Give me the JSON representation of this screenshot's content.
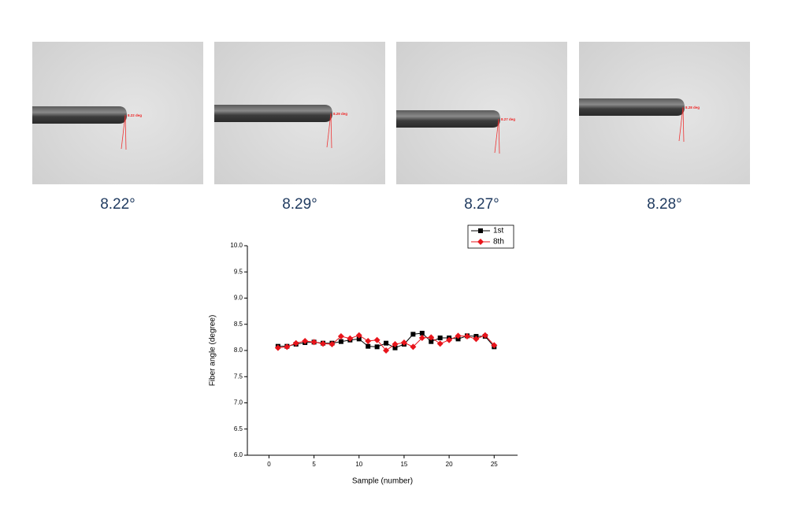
{
  "images": [
    {
      "overlay": "8.22 deg",
      "caption": "8.22°"
    },
    {
      "overlay": "8.29 deg",
      "caption": "8.29°"
    },
    {
      "overlay": "8.27 deg",
      "caption": "8.27°"
    },
    {
      "overlay": "8.28 deg",
      "caption": "8.28°"
    }
  ],
  "chart_data": {
    "type": "line",
    "x_label": "Sample (number)",
    "y_label": "Fiber angle (degree)",
    "x": [
      1,
      2,
      3,
      4,
      5,
      6,
      7,
      8,
      9,
      10,
      11,
      12,
      13,
      14,
      15,
      16,
      17,
      18,
      19,
      20,
      21,
      22,
      23,
      24,
      25
    ],
    "series": [
      {
        "name": "1st",
        "color": "#000000",
        "marker": "square",
        "values": [
          8.08,
          8.08,
          8.12,
          8.15,
          8.16,
          8.14,
          8.14,
          8.17,
          8.2,
          8.22,
          8.08,
          8.07,
          8.14,
          8.05,
          8.12,
          8.31,
          8.33,
          8.17,
          8.24,
          8.24,
          8.22,
          8.28,
          8.27,
          8.27,
          8.07
        ]
      },
      {
        "name": "8th",
        "color": "#e8141b",
        "marker": "diamond",
        "values": [
          8.05,
          8.07,
          8.14,
          8.18,
          8.16,
          8.13,
          8.12,
          8.27,
          8.23,
          8.29,
          8.18,
          8.2,
          8.0,
          8.12,
          8.15,
          8.07,
          8.24,
          8.25,
          8.13,
          8.2,
          8.28,
          8.27,
          8.22,
          8.29,
          8.1
        ]
      }
    ],
    "xlim": [
      -2.4,
      27.6
    ],
    "xticks": [
      0,
      5,
      10,
      15,
      20,
      25
    ],
    "ylim": [
      6.0,
      10.0
    ],
    "yticks": [
      {
        "value": 6.0,
        "label": "6.0"
      },
      {
        "value": 6.5,
        "label": "6.5"
      },
      {
        "value": 7.0,
        "label": "7.0"
      },
      {
        "value": 7.5,
        "label": "7.5"
      },
      {
        "value": 8.0,
        "label": "8.0"
      },
      {
        "value": 8.5,
        "label": "8.5"
      },
      {
        "value": 9.0,
        "label": "9.0"
      },
      {
        "value": 9.5,
        "label": "9.5"
      },
      {
        "value": 10.0,
        "label": "10.0"
      }
    ],
    "legend": "upper-right"
  }
}
